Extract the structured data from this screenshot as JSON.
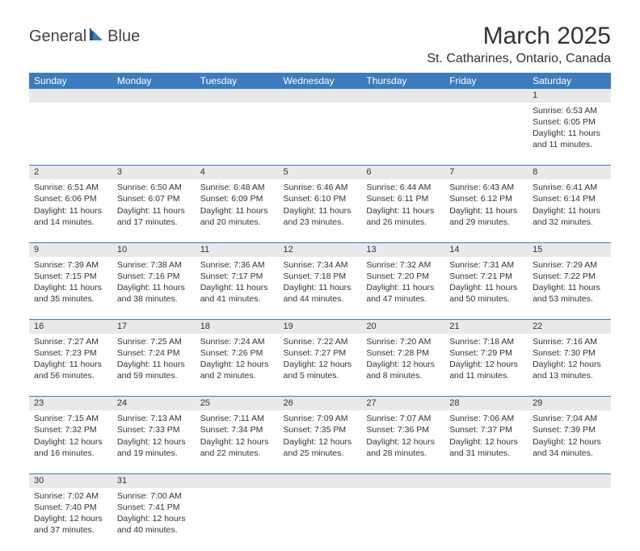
{
  "brand": {
    "part1": "General",
    "part2": "Blue"
  },
  "title": "March 2025",
  "location": "St. Catharines, Ontario, Canada",
  "columns": [
    "Sunday",
    "Monday",
    "Tuesday",
    "Wednesday",
    "Thursday",
    "Friday",
    "Saturday"
  ],
  "colors": {
    "header_bg": "#3b7bbf",
    "header_text": "#ffffff",
    "daynum_bg": "#e9e9e9",
    "text": "#333333",
    "rule": "#3b7bbf",
    "logo_blue": "#3b7bbf"
  },
  "weeks": [
    [
      null,
      null,
      null,
      null,
      null,
      null,
      {
        "n": "1",
        "sunrise": "Sunrise: 6:53 AM",
        "sunset": "Sunset: 6:05 PM",
        "d1": "Daylight: 11 hours",
        "d2": "and 11 minutes."
      }
    ],
    [
      {
        "n": "2",
        "sunrise": "Sunrise: 6:51 AM",
        "sunset": "Sunset: 6:06 PM",
        "d1": "Daylight: 11 hours",
        "d2": "and 14 minutes."
      },
      {
        "n": "3",
        "sunrise": "Sunrise: 6:50 AM",
        "sunset": "Sunset: 6:07 PM",
        "d1": "Daylight: 11 hours",
        "d2": "and 17 minutes."
      },
      {
        "n": "4",
        "sunrise": "Sunrise: 6:48 AM",
        "sunset": "Sunset: 6:09 PM",
        "d1": "Daylight: 11 hours",
        "d2": "and 20 minutes."
      },
      {
        "n": "5",
        "sunrise": "Sunrise: 6:46 AM",
        "sunset": "Sunset: 6:10 PM",
        "d1": "Daylight: 11 hours",
        "d2": "and 23 minutes."
      },
      {
        "n": "6",
        "sunrise": "Sunrise: 6:44 AM",
        "sunset": "Sunset: 6:11 PM",
        "d1": "Daylight: 11 hours",
        "d2": "and 26 minutes."
      },
      {
        "n": "7",
        "sunrise": "Sunrise: 6:43 AM",
        "sunset": "Sunset: 6:12 PM",
        "d1": "Daylight: 11 hours",
        "d2": "and 29 minutes."
      },
      {
        "n": "8",
        "sunrise": "Sunrise: 6:41 AM",
        "sunset": "Sunset: 6:14 PM",
        "d1": "Daylight: 11 hours",
        "d2": "and 32 minutes."
      }
    ],
    [
      {
        "n": "9",
        "sunrise": "Sunrise: 7:39 AM",
        "sunset": "Sunset: 7:15 PM",
        "d1": "Daylight: 11 hours",
        "d2": "and 35 minutes."
      },
      {
        "n": "10",
        "sunrise": "Sunrise: 7:38 AM",
        "sunset": "Sunset: 7:16 PM",
        "d1": "Daylight: 11 hours",
        "d2": "and 38 minutes."
      },
      {
        "n": "11",
        "sunrise": "Sunrise: 7:36 AM",
        "sunset": "Sunset: 7:17 PM",
        "d1": "Daylight: 11 hours",
        "d2": "and 41 minutes."
      },
      {
        "n": "12",
        "sunrise": "Sunrise: 7:34 AM",
        "sunset": "Sunset: 7:18 PM",
        "d1": "Daylight: 11 hours",
        "d2": "and 44 minutes."
      },
      {
        "n": "13",
        "sunrise": "Sunrise: 7:32 AM",
        "sunset": "Sunset: 7:20 PM",
        "d1": "Daylight: 11 hours",
        "d2": "and 47 minutes."
      },
      {
        "n": "14",
        "sunrise": "Sunrise: 7:31 AM",
        "sunset": "Sunset: 7:21 PM",
        "d1": "Daylight: 11 hours",
        "d2": "and 50 minutes."
      },
      {
        "n": "15",
        "sunrise": "Sunrise: 7:29 AM",
        "sunset": "Sunset: 7:22 PM",
        "d1": "Daylight: 11 hours",
        "d2": "and 53 minutes."
      }
    ],
    [
      {
        "n": "16",
        "sunrise": "Sunrise: 7:27 AM",
        "sunset": "Sunset: 7:23 PM",
        "d1": "Daylight: 11 hours",
        "d2": "and 56 minutes."
      },
      {
        "n": "17",
        "sunrise": "Sunrise: 7:25 AM",
        "sunset": "Sunset: 7:24 PM",
        "d1": "Daylight: 11 hours",
        "d2": "and 59 minutes."
      },
      {
        "n": "18",
        "sunrise": "Sunrise: 7:24 AM",
        "sunset": "Sunset: 7:26 PM",
        "d1": "Daylight: 12 hours",
        "d2": "and 2 minutes."
      },
      {
        "n": "19",
        "sunrise": "Sunrise: 7:22 AM",
        "sunset": "Sunset: 7:27 PM",
        "d1": "Daylight: 12 hours",
        "d2": "and 5 minutes."
      },
      {
        "n": "20",
        "sunrise": "Sunrise: 7:20 AM",
        "sunset": "Sunset: 7:28 PM",
        "d1": "Daylight: 12 hours",
        "d2": "and 8 minutes."
      },
      {
        "n": "21",
        "sunrise": "Sunrise: 7:18 AM",
        "sunset": "Sunset: 7:29 PM",
        "d1": "Daylight: 12 hours",
        "d2": "and 11 minutes."
      },
      {
        "n": "22",
        "sunrise": "Sunrise: 7:16 AM",
        "sunset": "Sunset: 7:30 PM",
        "d1": "Daylight: 12 hours",
        "d2": "and 13 minutes."
      }
    ],
    [
      {
        "n": "23",
        "sunrise": "Sunrise: 7:15 AM",
        "sunset": "Sunset: 7:32 PM",
        "d1": "Daylight: 12 hours",
        "d2": "and 16 minutes."
      },
      {
        "n": "24",
        "sunrise": "Sunrise: 7:13 AM",
        "sunset": "Sunset: 7:33 PM",
        "d1": "Daylight: 12 hours",
        "d2": "and 19 minutes."
      },
      {
        "n": "25",
        "sunrise": "Sunrise: 7:11 AM",
        "sunset": "Sunset: 7:34 PM",
        "d1": "Daylight: 12 hours",
        "d2": "and 22 minutes."
      },
      {
        "n": "26",
        "sunrise": "Sunrise: 7:09 AM",
        "sunset": "Sunset: 7:35 PM",
        "d1": "Daylight: 12 hours",
        "d2": "and 25 minutes."
      },
      {
        "n": "27",
        "sunrise": "Sunrise: 7:07 AM",
        "sunset": "Sunset: 7:36 PM",
        "d1": "Daylight: 12 hours",
        "d2": "and 28 minutes."
      },
      {
        "n": "28",
        "sunrise": "Sunrise: 7:06 AM",
        "sunset": "Sunset: 7:37 PM",
        "d1": "Daylight: 12 hours",
        "d2": "and 31 minutes."
      },
      {
        "n": "29",
        "sunrise": "Sunrise: 7:04 AM",
        "sunset": "Sunset: 7:39 PM",
        "d1": "Daylight: 12 hours",
        "d2": "and 34 minutes."
      }
    ],
    [
      {
        "n": "30",
        "sunrise": "Sunrise: 7:02 AM",
        "sunset": "Sunset: 7:40 PM",
        "d1": "Daylight: 12 hours",
        "d2": "and 37 minutes."
      },
      {
        "n": "31",
        "sunrise": "Sunrise: 7:00 AM",
        "sunset": "Sunset: 7:41 PM",
        "d1": "Daylight: 12 hours",
        "d2": "and 40 minutes."
      },
      null,
      null,
      null,
      null,
      null
    ]
  ]
}
